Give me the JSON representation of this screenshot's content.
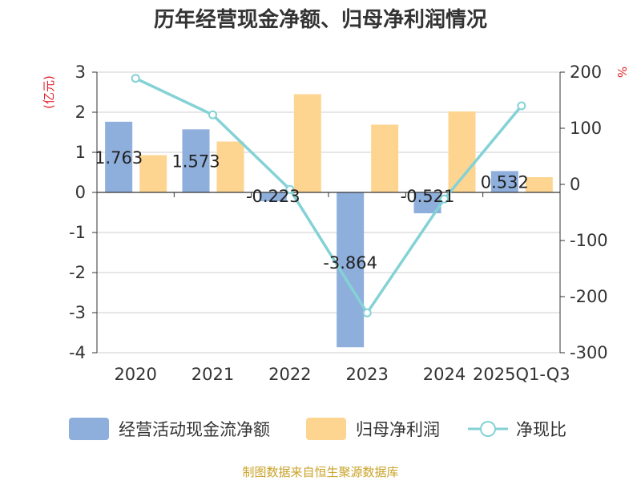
{
  "chart_data": {
    "type": "bar",
    "title": "历年经营现金净额、归母净利润情况",
    "categories": [
      "2020",
      "2021",
      "2022",
      "2023",
      "2024",
      "2025Q1-Q3"
    ],
    "left_axis": {
      "unit": "(亿元)",
      "ticks": [
        "3",
        "2",
        "1",
        "0",
        "-1",
        "-2",
        "-3",
        "-4"
      ],
      "ylim": [
        -4,
        3
      ]
    },
    "right_axis": {
      "unit": "%",
      "ticks": [
        "200",
        "100",
        "0",
        "-100",
        "-200",
        "-300"
      ],
      "ylim": [
        -300,
        200
      ]
    },
    "series": [
      {
        "name": "经营活动现金流净额",
        "axis": "left",
        "kind": "bar",
        "color": "#8eaedc",
        "values": [
          1.763,
          1.573,
          -0.223,
          -3.864,
          -0.521,
          0.532
        ],
        "labels": [
          "1.763",
          "1.573",
          "-0.223",
          "-3.864",
          "-0.521",
          "0.532"
        ]
      },
      {
        "name": "归母净利润",
        "axis": "left",
        "kind": "bar",
        "color": "#fdd591",
        "values": [
          0.93,
          1.27,
          2.45,
          1.69,
          2.02,
          0.38
        ]
      },
      {
        "name": "净现比",
        "axis": "right",
        "kind": "line",
        "color": "#84d2d6",
        "values": [
          189,
          124,
          -9,
          -229,
          -26,
          140
        ]
      }
    ],
    "grid": true,
    "legend": "bottom"
  },
  "source": "制图数据来自恒生聚源数据库"
}
